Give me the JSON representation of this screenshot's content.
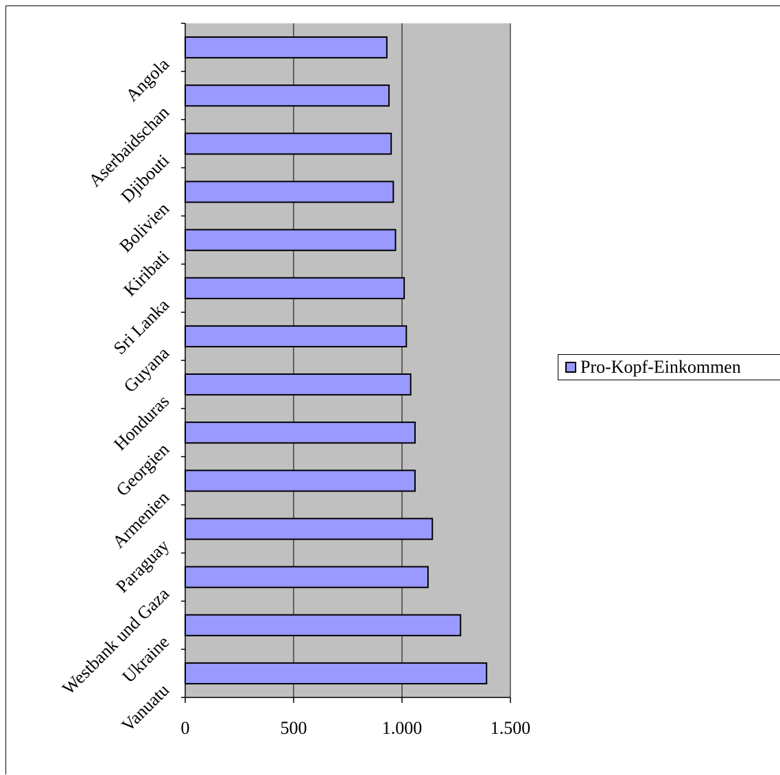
{
  "chart_data": {
    "type": "bar",
    "orientation": "horizontal",
    "categories": [
      "Vanuatu",
      "Ukraine",
      "Westbank und Gaza",
      "Paraguay",
      "Armenien",
      "Georgien",
      "Honduras",
      "Guyana",
      "Sri Lanka",
      "Kiribati",
      "Bolivien",
      "Djibouti",
      "Aserbaidschan",
      "Angola"
    ],
    "series": [
      {
        "name": "Pro-Kopf-Einkommen",
        "values": [
          1390,
          1270,
          1120,
          1140,
          1060,
          1060,
          1040,
          1020,
          1010,
          970,
          960,
          950,
          940,
          930
        ]
      }
    ],
    "xlim": [
      0,
      1500
    ],
    "xticks": [
      {
        "value": 0,
        "label": "0"
      },
      {
        "value": 500,
        "label": "500"
      },
      {
        "value": 1000,
        "label": "1.000"
      },
      {
        "value": 1500,
        "label": "1.500"
      }
    ],
    "grid": true,
    "legend": "right",
    "colors": {
      "bar": "#9999ff",
      "plot_background": "#c0c0c0",
      "gridline": "#000000"
    }
  }
}
